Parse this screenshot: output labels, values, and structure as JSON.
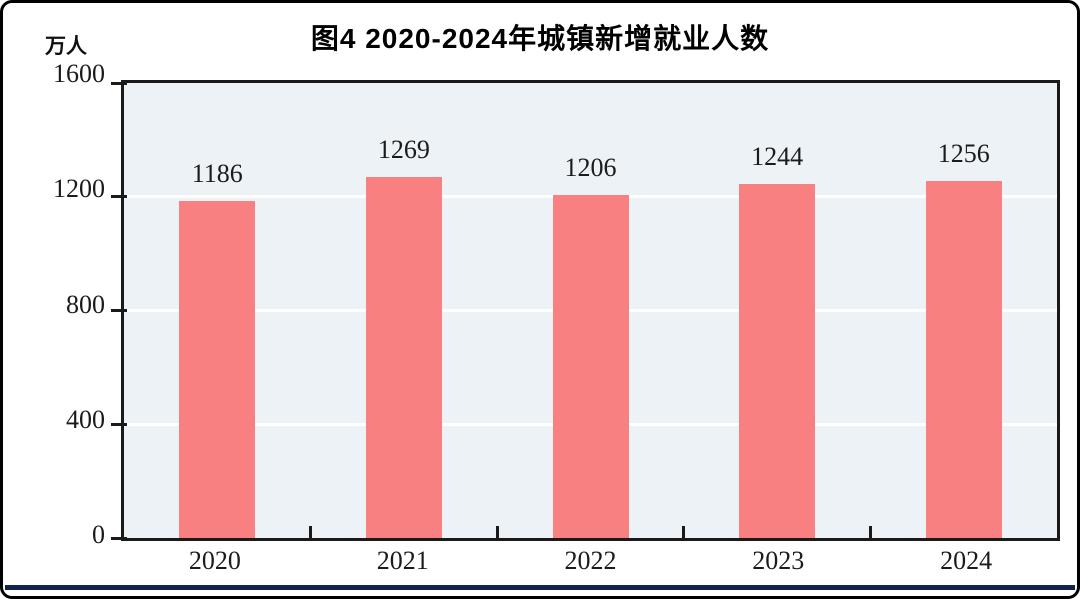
{
  "chart_data": {
    "type": "bar",
    "title": "图4  2020-2024年城镇新增就业人数",
    "categories": [
      "2020",
      "2021",
      "2022",
      "2023",
      "2024"
    ],
    "values": [
      1186,
      1269,
      1206,
      1244,
      1256
    ],
    "xlabel": "",
    "ylabel": "万人",
    "ylim": [
      0,
      1600
    ],
    "yticks": [
      0,
      400,
      800,
      1200,
      1600
    ],
    "grid": true,
    "legend": "none",
    "bar_color": "#f98080",
    "plot_bg": "#edf2f6",
    "gridline_color": "#ffffff",
    "axis_color": "#1a1a1a",
    "footer_rule_color": "#14224e"
  }
}
